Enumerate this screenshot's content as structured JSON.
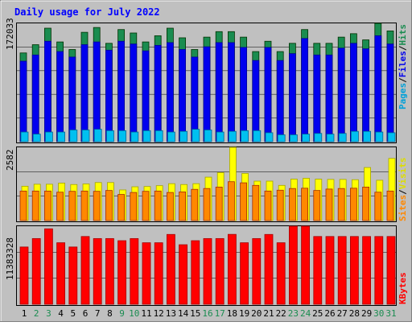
{
  "title": "Daily usage for July 2022",
  "colors": {
    "frame_bg": "#c0c0c0",
    "plot_bg": "#c0c0c0",
    "title_text": "#0000ff",
    "hits": "#1a8c50",
    "files": "#0000ee",
    "pages": "#00c0f0",
    "visits": "#ffff00",
    "sites": "#ff8800",
    "kbytes": "#ff0000",
    "weekend_day": "#1a8c50",
    "weekday": "#000000"
  },
  "legends": {
    "top": [
      {
        "text": "Pages",
        "color": "#00a0d8"
      },
      {
        "text": "/",
        "color": "#000000"
      },
      {
        "text": "Files",
        "color": "#0000ee"
      },
      {
        "text": "/",
        "color": "#000000"
      },
      {
        "text": "Hits",
        "color": "#1a8c50"
      }
    ],
    "middle": [
      {
        "text": "Sites",
        "color": "#ff8800"
      },
      {
        "text": "/",
        "color": "#000000"
      },
      {
        "text": "Visits",
        "color": "#dddd00"
      }
    ],
    "bottom": [
      {
        "text": "KBytes",
        "color": "#ff0000"
      }
    ]
  },
  "chart_data": [
    {
      "type": "bar",
      "panel": "hits-files-pages",
      "y_max_label": "172033",
      "ylim": [
        0,
        172033
      ],
      "grid": true,
      "x": [
        1,
        2,
        3,
        4,
        5,
        6,
        7,
        8,
        9,
        10,
        11,
        12,
        13,
        14,
        15,
        16,
        17,
        18,
        19,
        20,
        21,
        22,
        23,
        24,
        25,
        26,
        27,
        28,
        29,
        30,
        31
      ],
      "weekend": [
        2,
        3,
        9,
        10,
        16,
        17,
        23,
        24,
        30,
        31
      ],
      "series": [
        {
          "name": "Hits",
          "values": [
            129000,
            141000,
            165000,
            145000,
            134000,
            159000,
            166000,
            143000,
            163000,
            158000,
            145000,
            154000,
            165000,
            151000,
            134000,
            152000,
            160000,
            160000,
            152000,
            131000,
            146000,
            131000,
            143000,
            163000,
            143000,
            143000,
            152000,
            157000,
            148000,
            172033,
            161000
          ]
        },
        {
          "name": "Files",
          "values": [
            117000,
            126000,
            146000,
            131000,
            123000,
            141000,
            145000,
            133000,
            146000,
            142000,
            132000,
            140000,
            144000,
            134000,
            123000,
            138000,
            144000,
            144000,
            137000,
            118000,
            137000,
            118000,
            128000,
            150000,
            126000,
            126000,
            136000,
            143000,
            135000,
            154000,
            142000
          ]
        },
        {
          "name": "Pages",
          "values": [
            14000,
            11000,
            14000,
            14000,
            17000,
            17000,
            18000,
            16000,
            16000,
            14000,
            16000,
            16000,
            14000,
            15000,
            18000,
            17000,
            14000,
            15000,
            16000,
            16000,
            13000,
            10000,
            10000,
            11000,
            12000,
            11000,
            12000,
            15000,
            15000,
            14000,
            13000
          ]
        }
      ]
    },
    {
      "type": "bar",
      "panel": "visits-sites",
      "y_max_label": "2582",
      "ylim": [
        0,
        2582
      ],
      "grid": true,
      "x": [
        1,
        2,
        3,
        4,
        5,
        6,
        7,
        8,
        9,
        10,
        11,
        12,
        13,
        14,
        15,
        16,
        17,
        18,
        19,
        20,
        21,
        22,
        23,
        24,
        25,
        26,
        27,
        28,
        29,
        30,
        31
      ],
      "series": [
        {
          "name": "Visits",
          "values": [
            1210,
            1280,
            1280,
            1320,
            1270,
            1290,
            1340,
            1340,
            1080,
            1190,
            1200,
            1230,
            1300,
            1270,
            1300,
            1530,
            1690,
            2582,
            1660,
            1390,
            1390,
            1240,
            1460,
            1490,
            1460,
            1450,
            1450,
            1440,
            1870,
            1420,
            2190
          ]
        },
        {
          "name": "Sites",
          "values": [
            1040,
            1040,
            1040,
            1000,
            1030,
            1040,
            1030,
            1060,
            920,
            990,
            1030,
            1040,
            990,
            1010,
            1100,
            1130,
            1180,
            1370,
            1330,
            1240,
            1040,
            1070,
            1130,
            1140,
            1060,
            1110,
            1130,
            1140,
            1180,
            1000,
            1040
          ]
        }
      ]
    },
    {
      "type": "bar",
      "panel": "kbytes",
      "y_max_label": "11383328",
      "ylim": [
        0,
        11383328
      ],
      "grid": true,
      "x": [
        1,
        2,
        3,
        4,
        5,
        6,
        7,
        8,
        9,
        10,
        11,
        12,
        13,
        14,
        15,
        16,
        17,
        18,
        19,
        20,
        21,
        22,
        23,
        24,
        25,
        26,
        27,
        28,
        29,
        30,
        31
      ],
      "series": [
        {
          "name": "KBytes",
          "values": [
            8350000,
            9580000,
            11000000,
            8970000,
            8350000,
            9880000,
            9580000,
            9580000,
            9270000,
            9580000,
            8970000,
            8970000,
            10180000,
            8680000,
            9270000,
            9580000,
            9580000,
            10190000,
            8970000,
            9580000,
            10180000,
            8970000,
            11383328,
            11383328,
            9880000,
            9880000,
            9880000,
            9880000,
            9880000,
            9880000,
            9880000
          ]
        }
      ]
    }
  ]
}
